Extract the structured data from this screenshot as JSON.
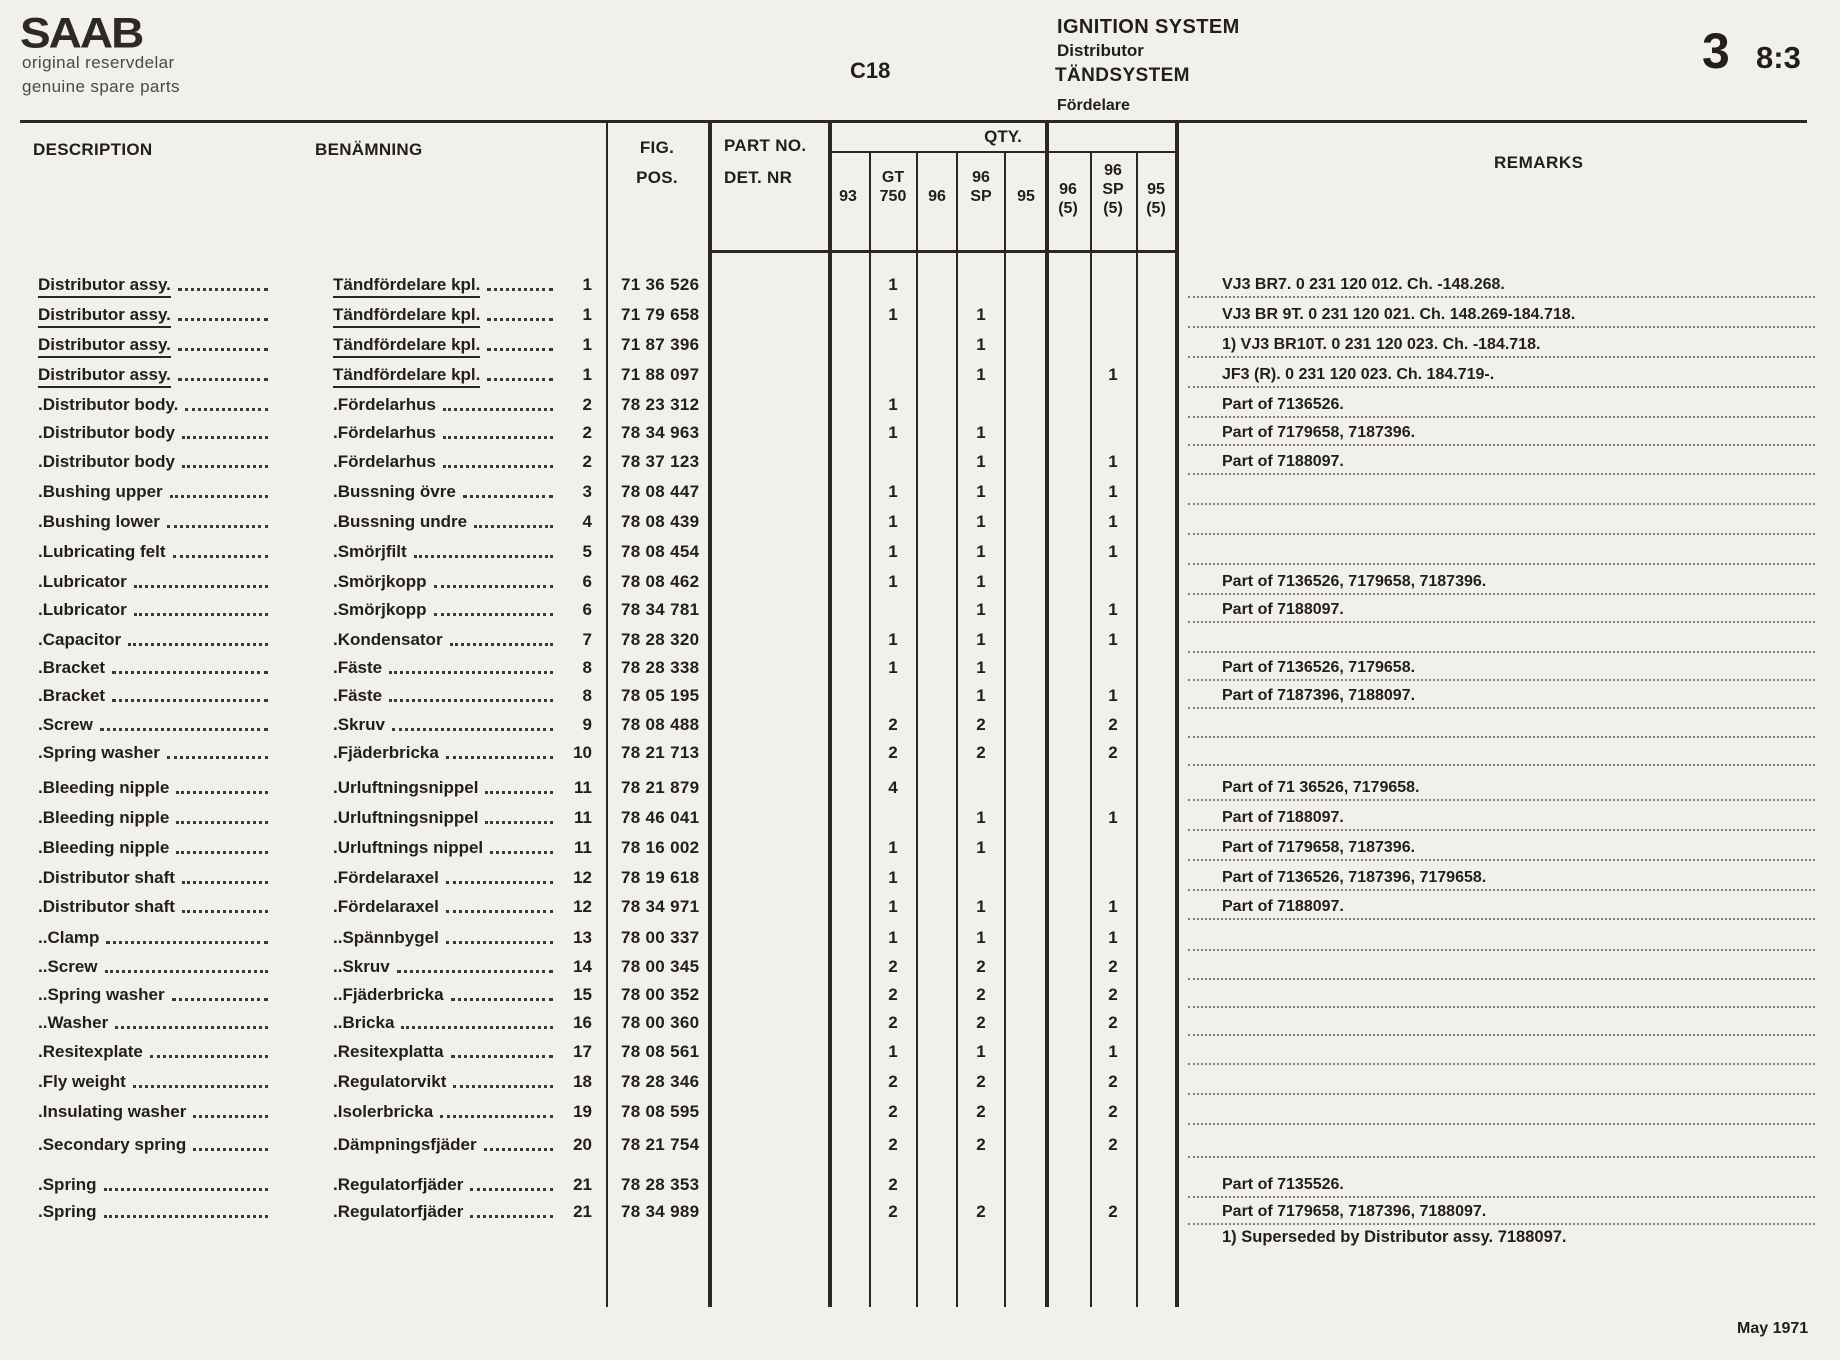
{
  "colors": {
    "paper": "#f2f0ea",
    "ink": "#221f1b"
  },
  "header": {
    "logo": "SAAB",
    "tagline_sv": "original reservdelar",
    "tagline_en": "genuine spare parts",
    "page_code": "C18",
    "system_en": "IGNITION SYSTEM",
    "component_en": "Distributor",
    "system_sv": "TÄNDSYSTEM",
    "component_sv": "Fördelare",
    "section_number": "3",
    "page_number": "8:3"
  },
  "table": {
    "headers": {
      "description": "DESCRIPTION",
      "benamning": "BENÄMNING",
      "fig_line1": "FIG.",
      "fig_line2": "POS.",
      "part_line1": "PART NO.",
      "part_line2": "DET. NR",
      "qty": "QTY.",
      "remarks": "REMARKS"
    },
    "qty_columns": [
      [
        "93"
      ],
      [
        "GT",
        "750"
      ],
      [
        "96"
      ],
      [
        "96",
        "SP"
      ],
      [
        "95"
      ],
      [
        "96",
        "(5)"
      ],
      [
        "96",
        "SP",
        "(5)"
      ],
      [
        "95",
        "(5)"
      ]
    ],
    "rows": [
      {
        "description": "Distributor assy.",
        "benamning": "Tändfördelare kpl.",
        "fig": "1",
        "part_no": "71 36 526",
        "qty": [
          "",
          "1",
          "",
          "",
          "",
          "",
          "",
          ""
        ],
        "remarks": "VJ3 BR7. 0 231 120 012. Ch. -148.268.",
        "underline": true
      },
      {
        "description": "Distributor assy.",
        "benamning": "Tändfördelare kpl.",
        "fig": "1",
        "part_no": "71 79 658",
        "qty": [
          "",
          "1",
          "",
          "1",
          "",
          "",
          "",
          ""
        ],
        "remarks": "VJ3 BR 9T. 0 231 120 021. Ch. 148.269-184.718.",
        "underline": true
      },
      {
        "description": "Distributor assy.",
        "benamning": "Tändfördelare kpl.",
        "fig": "1",
        "part_no": "71 87 396",
        "qty": [
          "",
          "",
          "",
          "1",
          "",
          "",
          "",
          ""
        ],
        "remarks": "1) VJ3 BR10T. 0 231 120 023. Ch. -184.718.",
        "underline": true
      },
      {
        "description": "Distributor assy.",
        "benamning": "Tändfördelare kpl.",
        "fig": "1",
        "part_no": "71 88 097",
        "qty": [
          "",
          "",
          "",
          "1",
          "",
          "",
          "1",
          ""
        ],
        "remarks": "JF3 (R). 0 231 120 023. Ch. 184.719-.",
        "underline": true
      },
      {
        "description": ".Distributor body.",
        "benamning": ".Fördelarhus",
        "fig": "2",
        "part_no": "78 23 312",
        "qty": [
          "",
          "1",
          "",
          "",
          "",
          "",
          "",
          ""
        ],
        "remarks": "Part of 7136526.",
        "underline": false
      },
      {
        "description": ".Distributor body",
        "benamning": ".Fördelarhus",
        "fig": "2",
        "part_no": "78 34 963",
        "qty": [
          "",
          "1",
          "",
          "1",
          "",
          "",
          "",
          ""
        ],
        "remarks": "Part of 7179658, 7187396.",
        "underline": false
      },
      {
        "description": ".Distributor body",
        "benamning": ".Fördelarhus",
        "fig": "2",
        "part_no": "78 37 123",
        "qty": [
          "",
          "",
          "",
          "1",
          "",
          "",
          "1",
          ""
        ],
        "remarks": "Part of 7188097.",
        "underline": false
      },
      {
        "description": ".Bushing upper",
        "benamning": ".Bussning övre",
        "fig": "3",
        "part_no": "78 08 447",
        "qty": [
          "",
          "1",
          "",
          "1",
          "",
          "",
          "1",
          ""
        ],
        "remarks": "",
        "underline": false
      },
      {
        "description": ".Bushing lower",
        "benamning": ".Bussning undre",
        "fig": "4",
        "part_no": "78 08 439",
        "qty": [
          "",
          "1",
          "",
          "1",
          "",
          "",
          "1",
          ""
        ],
        "remarks": "",
        "underline": false
      },
      {
        "description": ".Lubricating felt",
        "benamning": ".Smörjfilt",
        "fig": "5",
        "part_no": "78 08 454",
        "qty": [
          "",
          "1",
          "",
          "1",
          "",
          "",
          "1",
          ""
        ],
        "remarks": "",
        "underline": false
      },
      {
        "description": ".Lubricator",
        "benamning": ".Smörjkopp",
        "fig": "6",
        "part_no": "78 08 462",
        "qty": [
          "",
          "1",
          "",
          "1",
          "",
          "",
          "",
          ""
        ],
        "remarks": "Part of 7136526, 7179658, 7187396.",
        "underline": false
      },
      {
        "description": ".Lubricator",
        "benamning": ".Smörjkopp",
        "fig": "6",
        "part_no": "78 34 781",
        "qty": [
          "",
          "",
          "",
          "1",
          "",
          "",
          "1",
          ""
        ],
        "remarks": "Part of 7188097.",
        "underline": false
      },
      {
        "description": ".Capacitor",
        "benamning": ".Kondensator",
        "fig": "7",
        "part_no": "78 28 320",
        "qty": [
          "",
          "1",
          "",
          "1",
          "",
          "",
          "1",
          ""
        ],
        "remarks": "",
        "underline": false
      },
      {
        "description": ".Bracket",
        "benamning": ".Fäste",
        "fig": "8",
        "part_no": "78 28 338",
        "qty": [
          "",
          "1",
          "",
          "1",
          "",
          "",
          "",
          ""
        ],
        "remarks": "Part of 7136526, 7179658.",
        "underline": false
      },
      {
        "description": ".Bracket",
        "benamning": ".Fäste",
        "fig": "8",
        "part_no": "78 05 195",
        "qty": [
          "",
          "",
          "",
          "1",
          "",
          "",
          "1",
          ""
        ],
        "remarks": "Part of 7187396, 7188097.",
        "underline": false
      },
      {
        "description": ".Screw",
        "benamning": ".Skruv",
        "fig": "9",
        "part_no": "78 08 488",
        "qty": [
          "",
          "2",
          "",
          "2",
          "",
          "",
          "2",
          ""
        ],
        "remarks": "",
        "underline": false
      },
      {
        "description": ".Spring washer",
        "benamning": ".Fjäderbricka",
        "fig": "10",
        "part_no": "78 21 713",
        "qty": [
          "",
          "2",
          "",
          "2",
          "",
          "",
          "2",
          ""
        ],
        "remarks": "",
        "underline": false
      },
      {
        "description": ".Bleeding nipple",
        "benamning": ".Urluftningsnippel",
        "fig": "11",
        "part_no": "78 21 879",
        "qty": [
          "",
          "4",
          "",
          "",
          "",
          "",
          "",
          ""
        ],
        "remarks": "Part of 71 36526, 7179658.",
        "underline": false
      },
      {
        "description": ".Bleeding nipple",
        "benamning": ".Urluftningsnippel",
        "fig": "11",
        "part_no": "78 46 041",
        "qty": [
          "",
          "",
          "",
          "1",
          "",
          "",
          "1",
          ""
        ],
        "remarks": "Part of 7188097.",
        "underline": false
      },
      {
        "description": ".Bleeding nipple",
        "benamning": ".Urluftnings nippel",
        "fig": "11",
        "part_no": "78 16 002",
        "qty": [
          "",
          "1",
          "",
          "1",
          "",
          "",
          "",
          ""
        ],
        "remarks": "Part of 7179658, 7187396.",
        "underline": false
      },
      {
        "description": ".Distributor shaft",
        "benamning": ".Fördelaraxel",
        "fig": "12",
        "part_no": "78 19 618",
        "qty": [
          "",
          "1",
          "",
          "",
          "",
          "",
          "",
          ""
        ],
        "remarks": "Part of 7136526, 7187396, 7179658.",
        "underline": false
      },
      {
        "description": ".Distributor shaft",
        "benamning": ".Fördelaraxel",
        "fig": "12",
        "part_no": "78 34 971",
        "qty": [
          "",
          "1",
          "",
          "1",
          "",
          "",
          "1",
          ""
        ],
        "remarks": "Part of 7188097.",
        "underline": false
      },
      {
        "description": "..Clamp",
        "benamning": "..Spännbygel",
        "fig": "13",
        "part_no": "78 00 337",
        "qty": [
          "",
          "1",
          "",
          "1",
          "",
          "",
          "1",
          ""
        ],
        "remarks": "",
        "underline": false
      },
      {
        "description": "..Screw",
        "benamning": "..Skruv",
        "fig": "14",
        "part_no": "78 00 345",
        "qty": [
          "",
          "2",
          "",
          "2",
          "",
          "",
          "2",
          ""
        ],
        "remarks": "",
        "underline": false
      },
      {
        "description": "..Spring washer",
        "benamning": "..Fjäderbricka",
        "fig": "15",
        "part_no": "78 00 352",
        "qty": [
          "",
          "2",
          "",
          "2",
          "",
          "",
          "2",
          ""
        ],
        "remarks": "",
        "underline": false
      },
      {
        "description": "..Washer",
        "benamning": "..Bricka",
        "fig": "16",
        "part_no": "78 00 360",
        "qty": [
          "",
          "2",
          "",
          "2",
          "",
          "",
          "2",
          ""
        ],
        "remarks": "",
        "underline": false
      },
      {
        "description": ".Resitexplate",
        "benamning": ".Resitexplatta",
        "fig": "17",
        "part_no": "78 08 561",
        "qty": [
          "",
          "1",
          "",
          "1",
          "",
          "",
          "1",
          ""
        ],
        "remarks": "",
        "underline": false
      },
      {
        "description": ".Fly weight",
        "benamning": ".Regulatorvikt",
        "fig": "18",
        "part_no": "78 28 346",
        "qty": [
          "",
          "2",
          "",
          "2",
          "",
          "",
          "2",
          ""
        ],
        "remarks": "",
        "underline": false
      },
      {
        "description": ".Insulating washer",
        "benamning": ".Isolerbricka",
        "fig": "19",
        "part_no": "78 08 595",
        "qty": [
          "",
          "2",
          "",
          "2",
          "",
          "",
          "2",
          ""
        ],
        "remarks": "",
        "underline": false
      },
      {
        "description": ".Secondary spring",
        "benamning": ".Dämpningsfjäder",
        "fig": "20",
        "part_no": "78 21 754",
        "qty": [
          "",
          "2",
          "",
          "2",
          "",
          "",
          "2",
          ""
        ],
        "remarks": "",
        "underline": false
      },
      {
        "description": ".Spring",
        "benamning": ".Regulatorfjäder",
        "fig": "21",
        "part_no": "78 28 353",
        "qty": [
          "",
          "2",
          "",
          "",
          "",
          "",
          "",
          ""
        ],
        "remarks": "Part of 7135526.",
        "underline": false
      },
      {
        "description": ".Spring",
        "benamning": ".Regulatorfjäder",
        "fig": "21",
        "part_no": "78 34 989",
        "qty": [
          "",
          "2",
          "",
          "2",
          "",
          "",
          "2",
          ""
        ],
        "remarks": "Part of 7179658, 7187396, 7188097.",
        "underline": false
      }
    ],
    "footnote": "1) Superseded by Distributor assy. 7188097."
  },
  "footer": {
    "date": "May 1971"
  }
}
